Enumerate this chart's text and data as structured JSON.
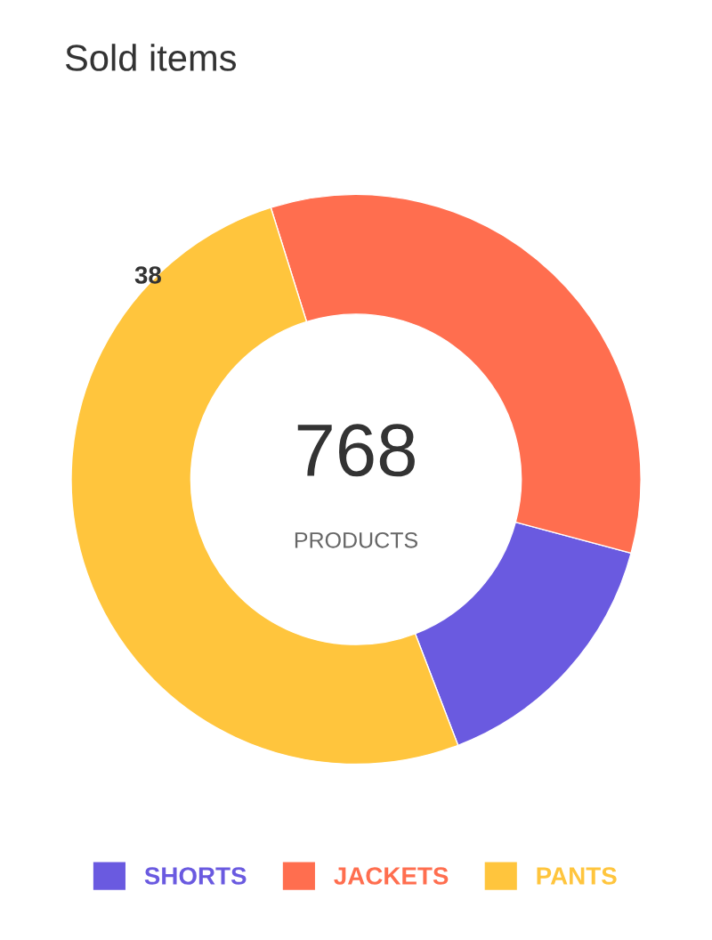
{
  "chart_data": {
    "type": "donut",
    "title": "Sold items",
    "categories": [
      "SHORTS",
      "JACKETS",
      "PANTS"
    ],
    "values": [
      15,
      34,
      51
    ],
    "colors": [
      "#6a5ae0",
      "#ff6e4f",
      "#ffc53d"
    ],
    "annotations": [
      "768",
      "PRODUCTS",
      "38"
    ],
    "legend": "bottom"
  }
}
